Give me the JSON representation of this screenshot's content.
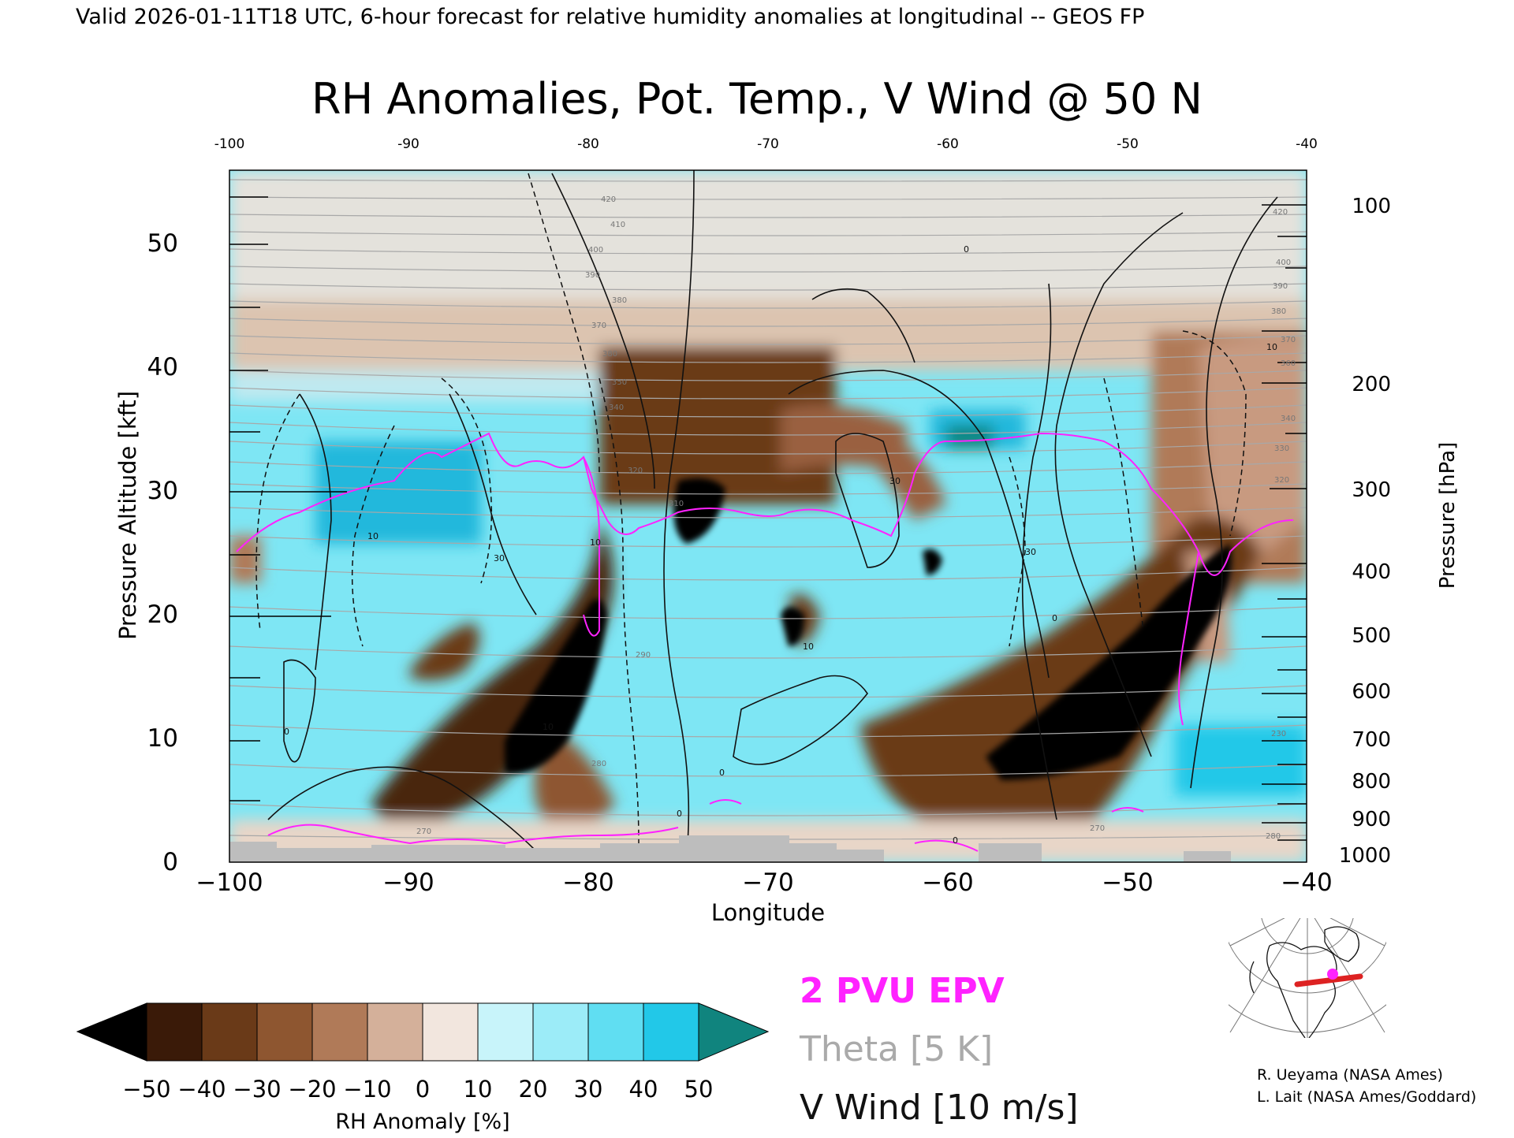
{
  "header": "Valid 2026-01-11T18 UTC, 6-hour forecast for relative humidity anomalies at longitudinal -- GEOS FP",
  "chart_data": {
    "type": "heatmap",
    "title": "RH Anomalies, Pot. Temp., V Wind @ 50 N",
    "xlabel": "Longitude",
    "ylabel": "Pressure Altitude [kft]",
    "y2label": "Pressure [hPa]",
    "xlim": [
      -100,
      -40
    ],
    "ylim": [
      0,
      55
    ],
    "x_ticks": [
      "−100",
      "−90",
      "−80",
      "−70",
      "−60",
      "−50",
      "−40"
    ],
    "top_ticks": [
      "-100",
      "-90",
      "-80",
      "-70",
      "-60",
      "-50",
      "-40"
    ],
    "y_ticks": [
      "0",
      "10",
      "20",
      "30",
      "40",
      "50"
    ],
    "pressure_ticks": [
      "100",
      "200",
      "300",
      "400",
      "500",
      "600",
      "700",
      "800",
      "900",
      "1000"
    ],
    "theta_labels": [
      "420",
      "410",
      "400",
      "390",
      "380",
      "370",
      "380",
      "350",
      "340",
      "320",
      "310",
      "290",
      "280",
      "270",
      "270",
      "280",
      "230",
      "320",
      "330",
      "340",
      "360",
      "370",
      "380",
      "390",
      "400",
      "420"
    ],
    "wind_labels": [
      "10",
      "30",
      "10",
      "0",
      "10",
      "30",
      "0",
      "10",
      "0",
      "10",
      "30",
      "0",
      "0",
      "0"
    ],
    "colorbar": {
      "label": "RH Anomaly [%]",
      "ticks": [
        "−50",
        "−40",
        "−30",
        "−20",
        "−10",
        "0",
        "10",
        "20",
        "30",
        "40",
        "50"
      ],
      "colors": [
        "#000000",
        "#3a1a08",
        "#6a3a18",
        "#8e5630",
        "#b07a58",
        "#d4b09a",
        "#f2e6de",
        "#c8f4fa",
        "#9cecf8",
        "#60def2",
        "#22c8e8",
        "#0ca4c8",
        "#10847e"
      ]
    },
    "legend": [
      {
        "label": "2 PVU EPV",
        "color": "#ff22ff"
      },
      {
        "label": "Theta [5 K]",
        "color": "#aaaaaa"
      },
      {
        "label": "V Wind [10 m/s]",
        "color": "#111111"
      }
    ]
  },
  "credits": [
    "R. Ueyama (NASA Ames)",
    "L. Lait (NASA Ames/Goddard)"
  ]
}
